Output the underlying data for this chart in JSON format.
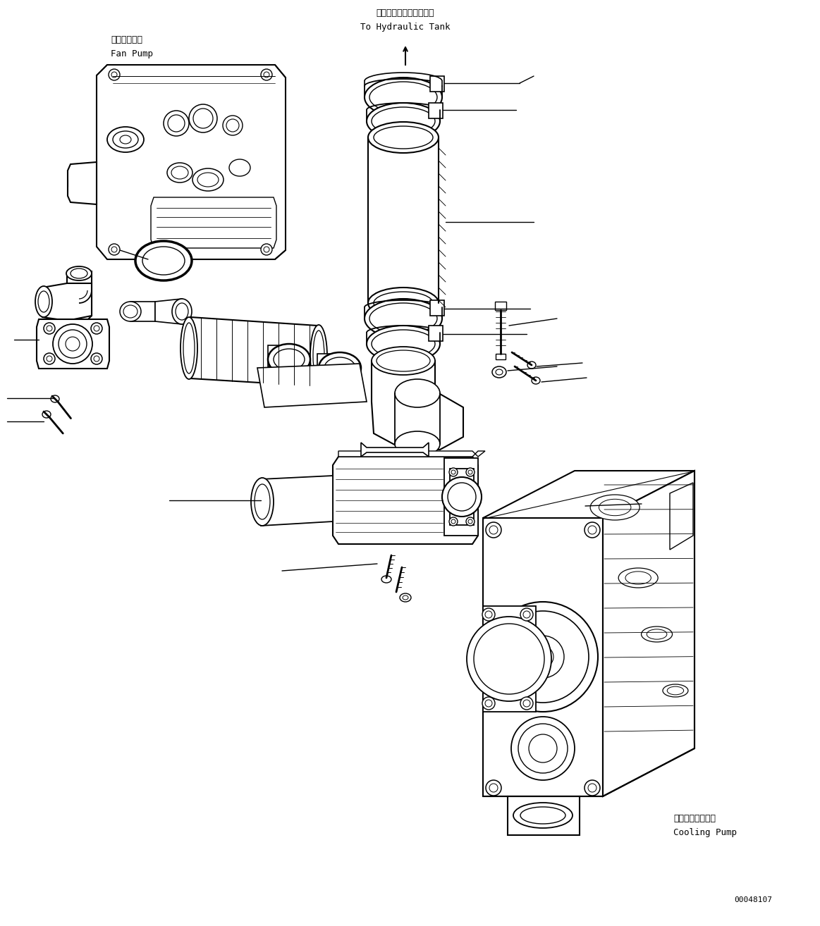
{
  "bg": "#ffffff",
  "lc": "#000000",
  "fw": 11.63,
  "fh": 13.14,
  "dpi": 100,
  "txt": {
    "hyd_jp": "ハイドロリックタンクへ",
    "hyd_en": "To Hydraulic Tank",
    "fan_jp": "ファンポンプ",
    "fan_en": "Fan Pump",
    "cool_jp": "クーリングポンプ",
    "cool_en": "Cooling Pump",
    "pnum": "00048107"
  }
}
